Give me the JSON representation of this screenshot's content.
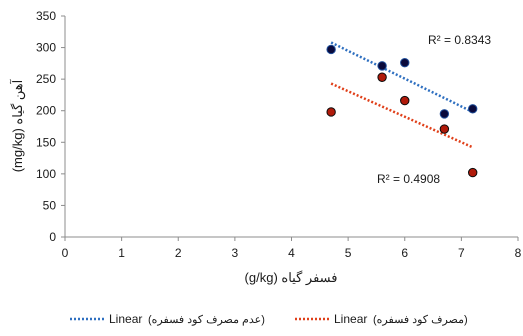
{
  "chart_data": {
    "type": "scatter",
    "title": "",
    "xlabel": "فسفر گیاه (g/kg)",
    "ylabel": "آهن گیاه (mg/kg)",
    "xlim": [
      0,
      8
    ],
    "ylim": [
      0,
      350
    ],
    "x_ticks": [
      0,
      1,
      2,
      3,
      4,
      5,
      6,
      7,
      8
    ],
    "y_ticks": [
      0,
      50,
      100,
      150,
      200,
      250,
      300,
      350
    ],
    "grid": false,
    "legend_position": "bottom",
    "series": [
      {
        "name": "(عدم مصرف کود فسفره)",
        "color": "#0a0a3c",
        "edge_color": "#1f4e9a",
        "trend_color": "#2e6fc0",
        "points": [
          {
            "x": 4.7,
            "y": 297
          },
          {
            "x": 5.6,
            "y": 271
          },
          {
            "x": 6.0,
            "y": 276
          },
          {
            "x": 6.7,
            "y": 195
          },
          {
            "x": 7.2,
            "y": 203
          }
        ],
        "trendline": {
          "label": "Linear",
          "x_range": [
            4.7,
            7.2
          ],
          "y_range": [
            308,
            198
          ]
        },
        "r2_label": "R² = 0.8343"
      },
      {
        "name": "(مصرف کود فسفره)",
        "color": "#b01a0a",
        "edge_color": "#0a0a0a",
        "trend_color": "#e0401a",
        "points": [
          {
            "x": 4.7,
            "y": 198
          },
          {
            "x": 5.6,
            "y": 253
          },
          {
            "x": 6.0,
            "y": 216
          },
          {
            "x": 6.7,
            "y": 171
          },
          {
            "x": 7.2,
            "y": 102
          }
        ],
        "trendline": {
          "label": "Linear",
          "x_range": [
            4.7,
            7.2
          ],
          "y_range": [
            243,
            142
          ]
        },
        "r2_label": "R² = 0.4908"
      }
    ]
  }
}
